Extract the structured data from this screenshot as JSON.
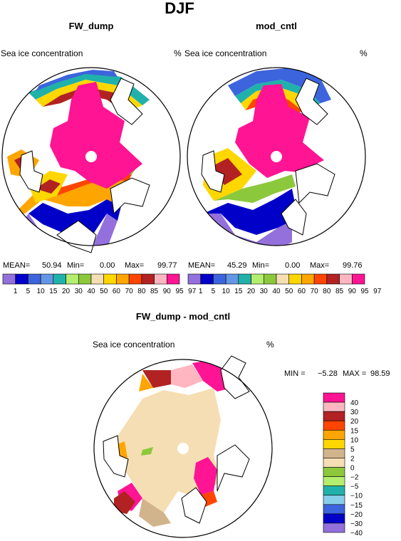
{
  "title": "DJF",
  "panels": [
    {
      "title": "FW_dump",
      "var_label": "Sea ice concentration",
      "units": "%",
      "stats": {
        "mean_label": "MEAN=",
        "mean": "50.94",
        "min_label": "Min=",
        "min": "0.00",
        "max_label": "Max=",
        "max": "99.77"
      }
    },
    {
      "title": "mod_cntl",
      "var_label": "Sea ice concentration",
      "units": "%",
      "stats": {
        "mean_label": "MEAN=",
        "mean": "45.29",
        "min_label": "Min=",
        "min": "0.00",
        "max_label": "Max=",
        "max": "99.76"
      }
    },
    {
      "title": "FW_dump - mod_cntl",
      "var_label": "Sea ice concentration",
      "units": "%",
      "stats": {
        "min_label": "MIN =",
        "min": "−5.28",
        "max_label": "MAX =",
        "max": "98.59"
      }
    }
  ],
  "colorbar_top": {
    "labels": [
      "1",
      "5",
      "10",
      "15",
      "20",
      "30",
      "40",
      "50",
      "60",
      "70",
      "80",
      "85",
      "90",
      "95",
      "97"
    ],
    "colors": [
      "#9370db",
      "#0000c8",
      "#3c64dc",
      "#6496e6",
      "#20b2aa",
      "#b4ee6e",
      "#8cc83c",
      "#f5deb3",
      "#ffd700",
      "#ffa500",
      "#ff4500",
      "#b22222",
      "#ffb6c1",
      "#ff1493"
    ]
  },
  "colorbar_diff": {
    "labels": [
      "40",
      "30",
      "20",
      "15",
      "10",
      "5",
      "2",
      "0",
      "−2",
      "−5",
      "−10",
      "−15",
      "−20",
      "−30",
      "−40"
    ],
    "colors": [
      "#ff1493",
      "#ffb6c1",
      "#b22222",
      "#ff4500",
      "#ffa500",
      "#ffd700",
      "#d2b48c",
      "#f5deb3",
      "#8cc83c",
      "#b4ee6e",
      "#20b2aa",
      "#87ceeb",
      "#3c64dc",
      "#0000c8",
      "#9370db"
    ]
  },
  "chart_data": [
    {
      "type": "heatmap",
      "projection": "polar stereographic",
      "title": "FW_dump",
      "variable": "Sea ice concentration",
      "units": "%",
      "mean": 50.94,
      "min": 0.0,
      "max": 99.77,
      "levels": [
        1,
        5,
        10,
        15,
        20,
        30,
        40,
        50,
        60,
        70,
        80,
        85,
        90,
        95,
        97
      ]
    },
    {
      "type": "heatmap",
      "projection": "polar stereographic",
      "title": "mod_cntl",
      "variable": "Sea ice concentration",
      "units": "%",
      "mean": 45.29,
      "min": 0.0,
      "max": 99.76,
      "levels": [
        1,
        5,
        10,
        15,
        20,
        30,
        40,
        50,
        60,
        70,
        80,
        85,
        90,
        95,
        97
      ]
    },
    {
      "type": "heatmap",
      "projection": "polar stereographic",
      "title": "FW_dump - mod_cntl",
      "variable": "Sea ice concentration",
      "units": "%",
      "min": -5.28,
      "max": 98.59,
      "levels": [
        -40,
        -30,
        -20,
        -15,
        -10,
        -5,
        -2,
        0,
        2,
        5,
        10,
        15,
        20,
        30,
        40
      ]
    }
  ]
}
